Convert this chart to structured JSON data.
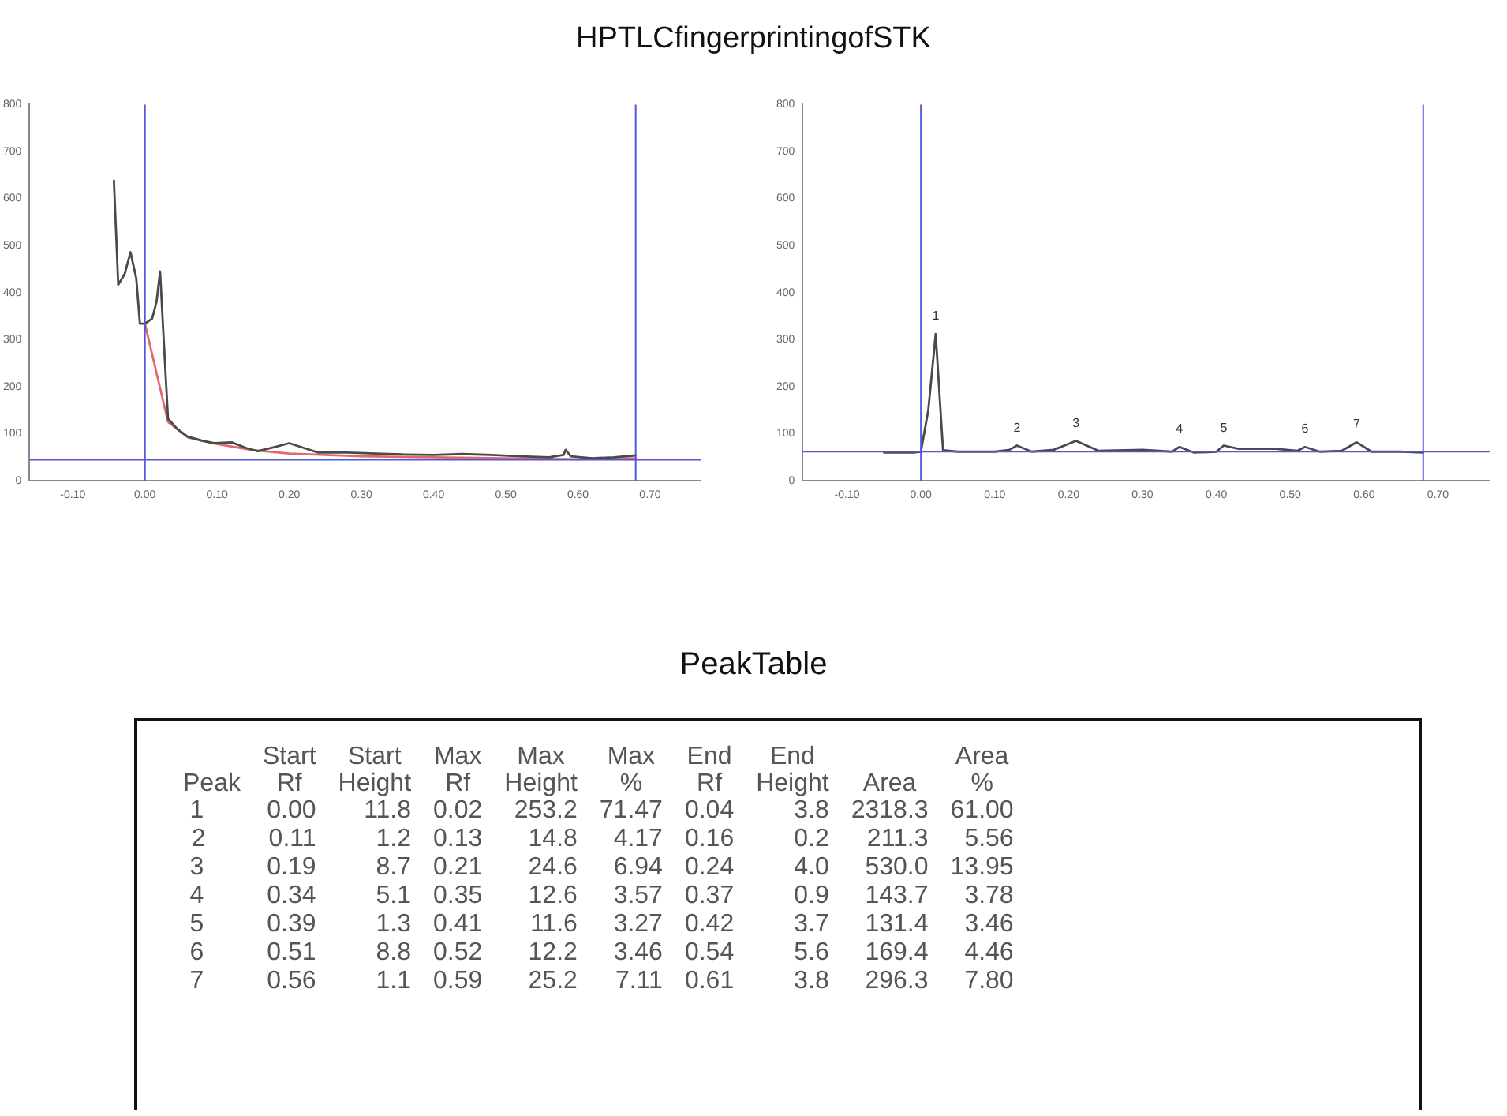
{
  "chart_data": [
    {
      "type": "line",
      "title": "HPTLCfingerprintingofSTK",
      "xlim": [
        -0.16,
        0.77
      ],
      "ylim": [
        0,
        800
      ],
      "xticks": [
        {
          "value": -0.1,
          "label": "-0.10"
        },
        {
          "value": 0,
          "label": "0.00"
        },
        {
          "value": 0.1,
          "label": "0.10"
        },
        {
          "value": 0.2,
          "label": "0.20"
        },
        {
          "value": 0.3,
          "label": "0.30"
        },
        {
          "value": 0.4,
          "label": "0.40"
        },
        {
          "value": 0.5,
          "label": "0.50"
        },
        {
          "value": 0.6,
          "label": "0.60"
        },
        {
          "value": 0.7,
          "label": "0.70"
        }
      ],
      "yticks": [
        0,
        100,
        200,
        300,
        400,
        500,
        600,
        700,
        800
      ],
      "grid": false,
      "legend": false,
      "marker": "none",
      "line_style": "solid",
      "series": [
        {
          "color": "#4a4a4a",
          "x": [
            -0.043,
            -0.037,
            -0.028,
            -0.02,
            -0.012,
            -0.007,
            0,
            0.01,
            0.016,
            0.021,
            0.026,
            0.032,
            0.045,
            0.059,
            0.08,
            0.097,
            0.12,
            0.14,
            0.156,
            0.18,
            0.2,
            0.22,
            0.24,
            0.28,
            0.32,
            0.36,
            0.4,
            0.44,
            0.48,
            0.52,
            0.56,
            0.58,
            0.583,
            0.59,
            0.62,
            0.65,
            0.68
          ],
          "values": [
            638,
            417,
            440,
            486,
            430,
            334,
            334,
            345,
            380,
            445,
            300,
            132,
            110,
            94,
            85,
            80,
            82,
            70,
            63,
            72,
            80,
            70,
            60,
            60,
            58,
            56,
            55,
            57,
            55,
            52,
            50,
            55,
            66,
            52,
            48,
            50,
            54
          ]
        },
        {
          "color": "#e06a6a",
          "x": [
            0,
            0.032,
            0.06,
            0.1,
            0.15,
            0.2,
            0.3,
            0.4,
            0.5,
            0.6,
            0.68
          ],
          "values": [
            334,
            125,
            92,
            78,
            65,
            58,
            52,
            50,
            48,
            46,
            48
          ]
        }
      ],
      "ref_lines": [
        {
          "axis": "x",
          "value": 0,
          "color": "#5555dd"
        },
        {
          "axis": "x",
          "value": 0.68,
          "color": "#5555dd"
        },
        {
          "axis": "y",
          "value": 45,
          "color": "#5555dd"
        }
      ]
    },
    {
      "type": "line",
      "xlim": [
        -0.16,
        0.77
      ],
      "ylim": [
        0,
        800
      ],
      "xticks": [
        {
          "value": -0.1,
          "label": "-0.10"
        },
        {
          "value": 0,
          "label": "0.00"
        },
        {
          "value": 0.1,
          "label": "0.10"
        },
        {
          "value": 0.2,
          "label": "0.20"
        },
        {
          "value": 0.3,
          "label": "0.30"
        },
        {
          "value": 0.4,
          "label": "0.40"
        },
        {
          "value": 0.5,
          "label": "0.50"
        },
        {
          "value": 0.6,
          "label": "0.60"
        },
        {
          "value": 0.7,
          "label": "0.70"
        }
      ],
      "yticks": [
        0,
        100,
        200,
        300,
        400,
        500,
        600,
        700,
        800
      ],
      "grid": false,
      "legend": false,
      "marker": "none",
      "line_style": "solid",
      "series": [
        {
          "color": "#4a4a4a",
          "x": [
            -0.05,
            -0.01,
            0,
            0.01,
            0.02,
            0.03,
            0.05,
            0.1,
            0.12,
            0.13,
            0.15,
            0.18,
            0.21,
            0.24,
            0.3,
            0.34,
            0.35,
            0.37,
            0.4,
            0.41,
            0.43,
            0.48,
            0.51,
            0.52,
            0.54,
            0.57,
            0.59,
            0.61,
            0.65,
            0.68
          ],
          "values": [
            60,
            60,
            62,
            150,
            312,
            65,
            62,
            62,
            66,
            75,
            62,
            66,
            85,
            64,
            66,
            62,
            72,
            60,
            62,
            75,
            68,
            68,
            64,
            72,
            62,
            64,
            82,
            62,
            62,
            60
          ]
        }
      ],
      "ref_lines": [
        {
          "axis": "x",
          "value": 0,
          "color": "#5555dd"
        },
        {
          "axis": "x",
          "value": 0.68,
          "color": "#5555dd"
        },
        {
          "axis": "y",
          "value": 62,
          "color": "#5555dd"
        }
      ],
      "annotations": [
        {
          "text": "1",
          "x": 0.02,
          "y": 312
        },
        {
          "text": "2",
          "x": 0.13,
          "y": 75
        },
        {
          "text": "3",
          "x": 0.21,
          "y": 85
        },
        {
          "text": "4",
          "x": 0.35,
          "y": 72
        },
        {
          "text": "5",
          "x": 0.41,
          "y": 75
        },
        {
          "text": "6",
          "x": 0.52,
          "y": 72
        },
        {
          "text": "7",
          "x": 0.59,
          "y": 82
        }
      ]
    },
    {
      "type": "other",
      "title": "PeakTable",
      "categories": [
        "Peak",
        "Start Rf",
        "Start Height",
        "Max Rf",
        "Max Height",
        "Max %",
        "End Rf",
        "End Height",
        "Area",
        "Area %"
      ],
      "cell_labels": [
        [
          "1",
          "0.00",
          "11.8",
          "0.02",
          "253.2",
          "71.47",
          "0.04",
          "3.8",
          "2318.3",
          "61.00"
        ],
        [
          "2",
          "0.11",
          "1.2",
          "0.13",
          "14.8",
          "4.17",
          "0.16",
          "0.2",
          "211.3",
          "5.56"
        ],
        [
          "3",
          "0.19",
          "8.7",
          "0.21",
          "24.6",
          "6.94",
          "0.24",
          "4.0",
          "530.0",
          "13.95"
        ],
        [
          "4",
          "0.34",
          "5.1",
          "0.35",
          "12.6",
          "3.57",
          "0.37",
          "0.9",
          "143.7",
          "3.78"
        ],
        [
          "5",
          "0.39",
          "1.3",
          "0.41",
          "11.6",
          "3.27",
          "0.42",
          "3.7",
          "131.4",
          "3.46"
        ],
        [
          "6",
          "0.51",
          "8.8",
          "0.52",
          "12.2",
          "3.46",
          "0.54",
          "5.6",
          "169.4",
          "4.46"
        ],
        [
          "7",
          "0.56",
          "1.1",
          "0.59",
          "25.2",
          "7.11",
          "0.61",
          "3.8",
          "296.3",
          "7.80"
        ]
      ]
    }
  ]
}
